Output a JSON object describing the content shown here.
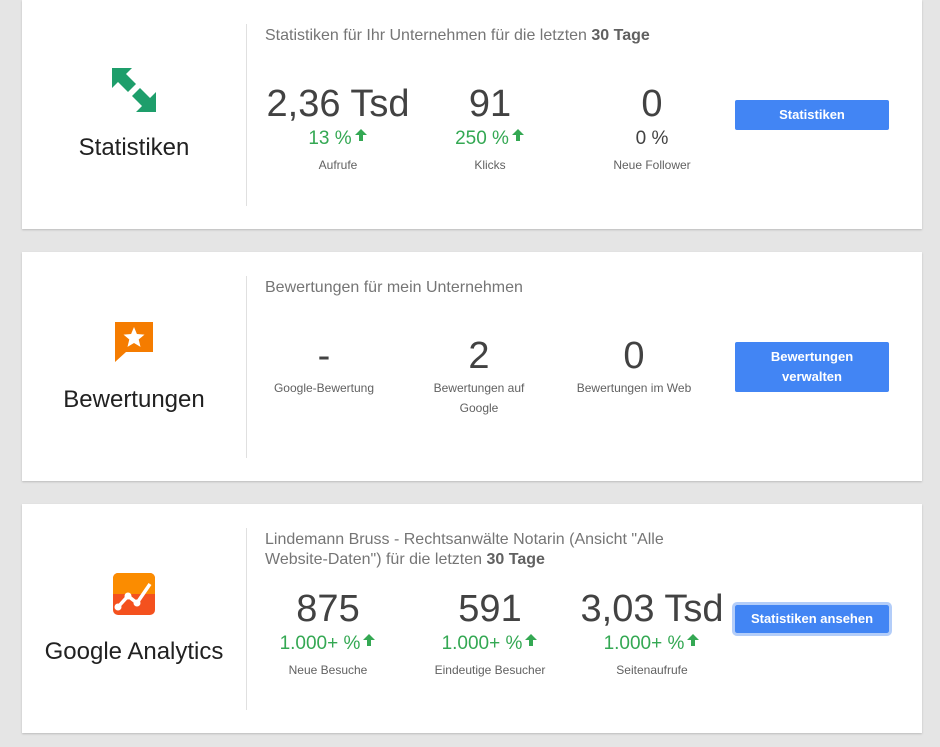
{
  "cards": {
    "stats": {
      "title": "Statistiken",
      "subtitle_prefix": "Statistiken für Ihr Unternehmen für die letzten ",
      "subtitle_bold": "30 Tage",
      "icon": "arrows-exchange-icon",
      "icon_color": "#1e9e6b",
      "metrics": [
        {
          "value": "2,36 Tsd",
          "change": "13 %",
          "trend": "up",
          "label": "Aufrufe"
        },
        {
          "value": "91",
          "change": "250 %",
          "trend": "up",
          "label": "Klicks"
        },
        {
          "value": "0",
          "change": "0 %",
          "trend": "none",
          "label": "Neue Follower"
        }
      ],
      "button": "Statistiken"
    },
    "reviews": {
      "title": "Bewertungen",
      "subtitle": "Bewertungen für mein Unternehmen",
      "icon": "star-review-icon",
      "icon_color": "#f57c00",
      "metrics": [
        {
          "value": "-",
          "label": "Google-Bewertung"
        },
        {
          "value": "2",
          "label": "Bewertungen auf Google"
        },
        {
          "value": "0",
          "label": "Bewertungen im Web"
        }
      ],
      "button": "Bewertungen verwalten"
    },
    "analytics": {
      "title": "Google Analytics",
      "subtitle_prefix": "Lindemann Bruss - Rechtsanwälte Notarin (Ansicht \"Alle Website-Daten\") für die letzten ",
      "subtitle_bold": "30 Tage",
      "icon": "analytics-icon",
      "icon_color": "#f4511e",
      "metrics": [
        {
          "value": "875",
          "change": "1.000+ %",
          "trend": "up",
          "label": "Neue Besuche"
        },
        {
          "value": "591",
          "change": "1.000+ %",
          "trend": "up",
          "label": "Eindeutige Besucher"
        },
        {
          "value": "3,03 Tsd",
          "change": "1.000+ %",
          "trend": "up",
          "label": "Seitenaufrufe"
        }
      ],
      "button": "Statistiken ansehen"
    }
  },
  "colors": {
    "accent": "#4285f4",
    "positive": "#34a853",
    "background": "#e5e5e5"
  }
}
